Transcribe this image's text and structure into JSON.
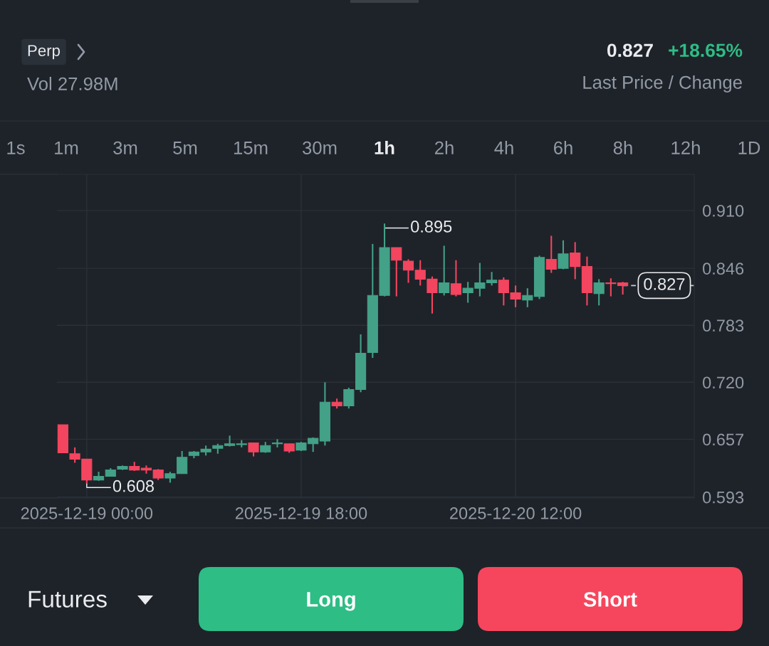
{
  "chart_data": {
    "type": "candlestick",
    "x": [
      "2025-12-18T22:00",
      "2025-12-18T23:00",
      "2025-12-19T00:00",
      "2025-12-19T01:00",
      "2025-12-19T02:00",
      "2025-12-19T03:00",
      "2025-12-19T04:00",
      "2025-12-19T05:00",
      "2025-12-19T06:00",
      "2025-12-19T07:00",
      "2025-12-19T08:00",
      "2025-12-19T09:00",
      "2025-12-19T10:00",
      "2025-12-19T11:00",
      "2025-12-19T12:00",
      "2025-12-19T13:00",
      "2025-12-19T14:00",
      "2025-12-19T15:00",
      "2025-12-19T16:00",
      "2025-12-19T17:00",
      "2025-12-19T18:00",
      "2025-12-19T19:00",
      "2025-12-19T20:00",
      "2025-12-19T21:00",
      "2025-12-19T22:00",
      "2025-12-19T23:00",
      "2025-12-20T00:00",
      "2025-12-20T01:00",
      "2025-12-20T02:00",
      "2025-12-20T03:00",
      "2025-12-20T04:00",
      "2025-12-20T05:00",
      "2025-12-20T06:00",
      "2025-12-20T07:00",
      "2025-12-20T08:00",
      "2025-12-20T09:00",
      "2025-12-20T10:00",
      "2025-12-20T11:00",
      "2025-12-20T12:00",
      "2025-12-20T13:00",
      "2025-12-20T14:00",
      "2025-12-20T15:00",
      "2025-12-20T16:00",
      "2025-12-20T17:00",
      "2025-12-20T18:00",
      "2025-12-20T19:00",
      "2025-12-20T20:00",
      "2025-12-20T21:00"
    ],
    "ohlc": [
      [
        0.673,
        0.673,
        0.642,
        0.642
      ],
      [
        0.641,
        0.648,
        0.631,
        0.635
      ],
      [
        0.635,
        0.635,
        0.608,
        0.612
      ],
      [
        0.612,
        0.621,
        0.611,
        0.616
      ],
      [
        0.616,
        0.625,
        0.616,
        0.623
      ],
      [
        0.624,
        0.628,
        0.623,
        0.627
      ],
      [
        0.627,
        0.632,
        0.622,
        0.623
      ],
      [
        0.625,
        0.628,
        0.619,
        0.623
      ],
      [
        0.623,
        0.624,
        0.612,
        0.614
      ],
      [
        0.614,
        0.621,
        0.609,
        0.619
      ],
      [
        0.619,
        0.644,
        0.619,
        0.637
      ],
      [
        0.639,
        0.644,
        0.636,
        0.643
      ],
      [
        0.643,
        0.65,
        0.639,
        0.646
      ],
      [
        0.647,
        0.652,
        0.641,
        0.65
      ],
      [
        0.65,
        0.661,
        0.649,
        0.652
      ],
      [
        0.651,
        0.656,
        0.648,
        0.652
      ],
      [
        0.653,
        0.653,
        0.638,
        0.643
      ],
      [
        0.643,
        0.654,
        0.642,
        0.65
      ],
      [
        0.652,
        0.657,
        0.648,
        0.653
      ],
      [
        0.652,
        0.652,
        0.642,
        0.644
      ],
      [
        0.645,
        0.654,
        0.644,
        0.653
      ],
      [
        0.652,
        0.659,
        0.643,
        0.658
      ],
      [
        0.655,
        0.72,
        0.65,
        0.698
      ],
      [
        0.698,
        0.702,
        0.691,
        0.694
      ],
      [
        0.694,
        0.714,
        0.691,
        0.712
      ],
      [
        0.712,
        0.773,
        0.709,
        0.752
      ],
      [
        0.753,
        0.873,
        0.747,
        0.816
      ],
      [
        0.816,
        0.895,
        0.815,
        0.869
      ],
      [
        0.869,
        0.869,
        0.815,
        0.855
      ],
      [
        0.854,
        0.856,
        0.83,
        0.844
      ],
      [
        0.844,
        0.855,
        0.827,
        0.834
      ],
      [
        0.834,
        0.837,
        0.796,
        0.819
      ],
      [
        0.819,
        0.871,
        0.816,
        0.83
      ],
      [
        0.829,
        0.855,
        0.815,
        0.817
      ],
      [
        0.819,
        0.831,
        0.808,
        0.824
      ],
      [
        0.824,
        0.852,
        0.815,
        0.83
      ],
      [
        0.83,
        0.842,
        0.827,
        0.833
      ],
      [
        0.833,
        0.836,
        0.805,
        0.819
      ],
      [
        0.819,
        0.827,
        0.803,
        0.812
      ],
      [
        0.811,
        0.824,
        0.803,
        0.816
      ],
      [
        0.815,
        0.86,
        0.812,
        0.858
      ],
      [
        0.856,
        0.882,
        0.841,
        0.845
      ],
      [
        0.846,
        0.877,
        0.845,
        0.862
      ],
      [
        0.863,
        0.875,
        0.834,
        0.848
      ],
      [
        0.848,
        0.859,
        0.805,
        0.819
      ],
      [
        0.818,
        0.834,
        0.805,
        0.83
      ],
      [
        0.83,
        0.835,
        0.815,
        0.829
      ],
      [
        0.83,
        0.831,
        0.817,
        0.827
      ]
    ],
    "colors": [
      "#f3455f",
      "#f3455f",
      "#f3455f",
      "#43a187",
      "#43a187",
      "#43a187",
      "#f3455f",
      "#f3455f",
      "#f3455f",
      "#43a187",
      "#43a187",
      "#43a187",
      "#43a187",
      "#43a187",
      "#43a187",
      "#43a187",
      "#f3455f",
      "#43a187",
      "#43a187",
      "#f3455f",
      "#43a187",
      "#43a187",
      "#43a187",
      "#f3455f",
      "#43a187",
      "#43a187",
      "#43a187",
      "#43a187",
      "#f3455f",
      "#f3455f",
      "#f3455f",
      "#f3455f",
      "#43a187",
      "#f3455f",
      "#43a187",
      "#43a187",
      "#43a187",
      "#f3455f",
      "#f3455f",
      "#43a187",
      "#43a187",
      "#f3455f",
      "#43a187",
      "#f3455f",
      "#f3455f",
      "#43a187",
      "#f3455f",
      "#f3455f"
    ],
    "xlim": [
      "2025-12-18T21:30",
      "2025-12-21T03:00"
    ],
    "xticks": [
      {
        "value": "2025-12-19T00:00",
        "label": "2025-12-19 00:00"
      },
      {
        "value": "2025-12-19T18:00",
        "label": "2025-12-19 18:00"
      },
      {
        "value": "2025-12-20T12:00",
        "label": "2025-12-20 12:00"
      }
    ],
    "ylim": [
      0.592,
      0.95
    ],
    "yticks": [
      0.593,
      0.657,
      {
        "value": 0.72,
        "label": "0.720"
      },
      0.783,
      0.846,
      {
        "value": 0.91,
        "label": "0.910"
      }
    ],
    "grid": true,
    "ref_lines": [
      {
        "axis": "y",
        "value": 0.827,
        "label": "0.827",
        "line_style": "dashed",
        "color": "#c8ccd2"
      }
    ],
    "annotations": [
      {
        "text": "0.895",
        "x": "2025-12-20T01:00",
        "y": 0.895
      },
      {
        "text": "0.608",
        "x": "2025-12-19T00:00",
        "y": 0.608
      },
      "Perp",
      "Vol 27.98M",
      "0.827",
      "+18.65%",
      "Last Price / Change",
      "1s",
      "1m",
      "3m",
      "5m",
      "15m",
      "30m",
      "1h",
      "2h",
      "4h",
      "6h",
      "8h",
      "12h",
      "1D",
      "Futures",
      "Long",
      "Short"
    ]
  }
}
